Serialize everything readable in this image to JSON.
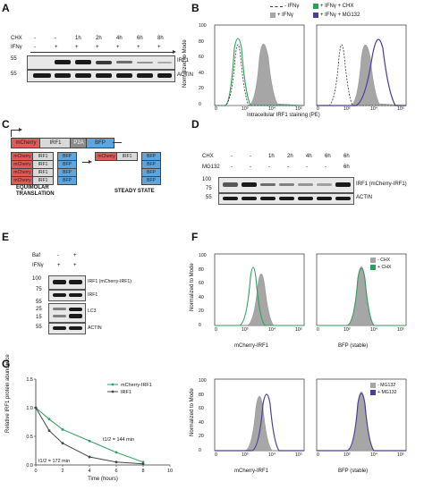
{
  "panels": {
    "a": "A",
    "b": "B",
    "c": "C",
    "d": "D",
    "e": "E",
    "f": "F",
    "g": "G"
  },
  "panel_a": {
    "row_labels": [
      "CHX",
      "IFNγ"
    ],
    "chx_values": [
      "-",
      "-",
      "1h",
      "2h",
      "4h",
      "6h",
      "8h"
    ],
    "ifng_values": [
      "-",
      "+",
      "+",
      "+",
      "+",
      "+",
      "+"
    ],
    "mw_markers": [
      "55",
      "55"
    ],
    "band_labels": [
      "IRF1",
      "ACTIN"
    ]
  },
  "panel_b": {
    "legend": [
      "- IFNγ",
      "+ IFNγ + CHX",
      "+ IFNγ",
      "+ IFNγ + MG132"
    ],
    "y_label": "Normalized to Mode",
    "x_label": "Intracellular IRF1 staining (PE)",
    "y_ticks": [
      "100",
      "80",
      "60",
      "40",
      "20",
      "0"
    ],
    "x_ticks": [
      "0",
      "10³",
      "10⁴",
      "10⁵"
    ]
  },
  "panel_c": {
    "construct": [
      "mCherry",
      "IRF1",
      "P2A",
      "BFP"
    ],
    "small_labels": [
      "mCherry",
      "IRF1",
      "BFP"
    ],
    "captions": [
      "EQUIMOLAR\nTRANSLATION",
      "STEADY STATE"
    ]
  },
  "panel_d": {
    "row_labels": [
      "CHX",
      "MG132"
    ],
    "chx_values": [
      "-",
      "-",
      "1h",
      "2h",
      "4h",
      "6h",
      "6h"
    ],
    "mg132_values": [
      "-",
      "-",
      "-",
      "-",
      "-",
      "-",
      "6h"
    ],
    "mw_markers": [
      "100",
      "75",
      "55"
    ],
    "band_labels": [
      "IRF1 (mCherry-IRF1)",
      "ACTIN"
    ]
  },
  "panel_e": {
    "row_labels": [
      "Baf",
      "IFNγ"
    ],
    "baf_values": [
      "-",
      "+"
    ],
    "ifng_values": [
      "+",
      "+"
    ],
    "mw_markers": [
      "100",
      "75",
      "55",
      "25",
      "15",
      "55"
    ],
    "band_labels": [
      "IRF1 (mCherry-IRF1)",
      "IRF1",
      "LC3",
      "ACTIN"
    ]
  },
  "panel_f": {
    "y_label_top": "Normalized to Mode",
    "y_label_bottom": "Normalized to Mode",
    "x_labels": [
      "mCherry-IRF1",
      "BFP (stable)",
      "mCherry-IRF1",
      "BFP (stable)"
    ],
    "legend_top": [
      "- CHX",
      "+ CHX"
    ],
    "legend_bottom": [
      "- MG132",
      "+ MG132"
    ],
    "y_ticks": [
      "100",
      "80",
      "60",
      "40",
      "20",
      "0"
    ],
    "x_ticks": [
      "0",
      "10³",
      "10⁴",
      "10⁵"
    ]
  },
  "chart_data": {
    "type": "line",
    "title": "",
    "xlabel": "Time (hours)",
    "ylabel": "Relative IRF1 protein abundance",
    "xlim": [
      0,
      10
    ],
    "ylim": [
      0,
      1.5
    ],
    "x_ticks": [
      "0",
      "2",
      "4",
      "6",
      "8",
      "10"
    ],
    "y_ticks": [
      "0.0",
      "0.5",
      "1.0",
      "1.5"
    ],
    "legend_placement": "top-right",
    "series": [
      {
        "name": "mCherry-IRF1",
        "color": "#2e9e5b",
        "x": [
          0,
          1,
          2,
          4,
          6,
          8
        ],
        "y": [
          1.0,
          0.8,
          0.62,
          0.42,
          0.22,
          0.05
        ]
      },
      {
        "name": "IRF1",
        "color": "#444444",
        "x": [
          0,
          1,
          2,
          4,
          6,
          8
        ],
        "y": [
          1.0,
          0.6,
          0.38,
          0.14,
          0.05,
          0.02
        ]
      }
    ],
    "annotations": [
      "t1/2 = 144 min",
      "t1/2 = 172 min"
    ]
  }
}
